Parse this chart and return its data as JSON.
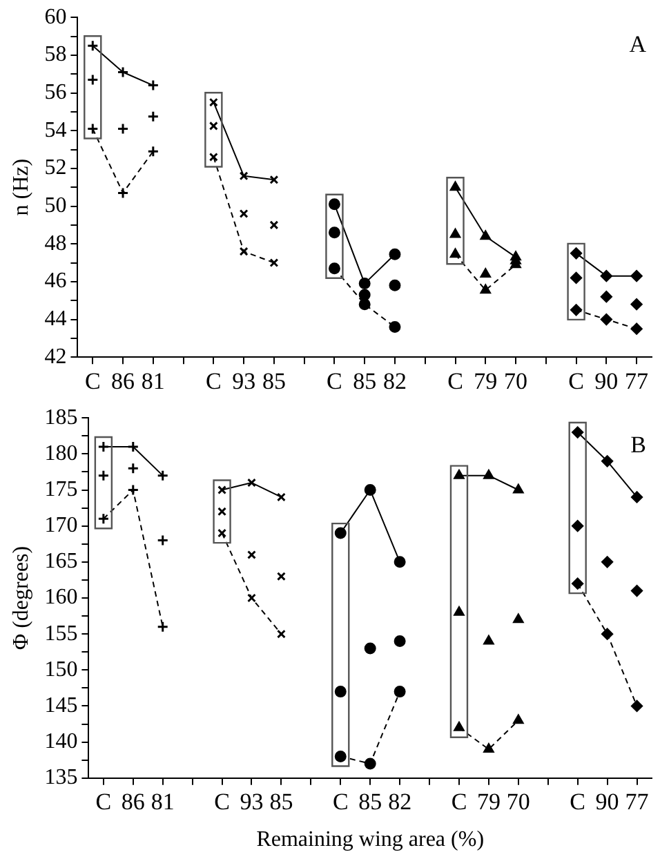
{
  "chart_data": [
    {
      "type": "line",
      "ylabel": "n (Hz)",
      "annotations": [
        "A"
      ],
      "grid": false,
      "legend": false,
      "categories": [
        "C",
        "86",
        "81",
        null,
        "C",
        "93",
        "85",
        null,
        "C",
        "85",
        "82",
        null,
        "C",
        "79",
        "70",
        null,
        "C",
        "90",
        "77"
      ],
      "ylim": [
        42,
        60
      ],
      "yticks": [
        42,
        {
          "value": 43,
          "label": null
        },
        44,
        {
          "value": 45,
          "label": null
        },
        46,
        {
          "value": 47,
          "label": null
        },
        48,
        {
          "value": 49,
          "label": null
        },
        50,
        {
          "value": 51,
          "label": null
        },
        52,
        {
          "value": 53,
          "label": null
        },
        54,
        {
          "value": 55,
          "label": null
        },
        56,
        {
          "value": 57,
          "label": null
        },
        58,
        {
          "value": 59,
          "label": null
        },
        60
      ],
      "series": [
        {
          "type": "line",
          "color": "#000000",
          "marker": "cross",
          "line_style": "solid",
          "values": [
            58.5,
            57.1,
            56.4,
            null,
            null,
            null,
            null,
            null,
            null,
            null,
            null,
            null,
            null,
            null,
            null,
            null,
            null,
            null,
            null
          ]
        },
        {
          "type": "scatter",
          "color": "#000000",
          "marker": "cross",
          "values": [
            56.7,
            54.1,
            54.75,
            null,
            null,
            null,
            null,
            null,
            null,
            null,
            null,
            null,
            null,
            null,
            null,
            null,
            null,
            null,
            null
          ]
        },
        {
          "type": "line",
          "color": "#000000",
          "marker": "cross",
          "line_style": "dashed",
          "values": [
            54.1,
            50.7,
            52.9,
            null,
            null,
            null,
            null,
            null,
            null,
            null,
            null,
            null,
            null,
            null,
            null,
            null,
            null,
            null,
            null
          ]
        },
        {
          "type": "line",
          "color": "#000000",
          "marker": "cross",
          "line_style": "solid",
          "values": [
            null,
            null,
            null,
            null,
            55.5,
            51.6,
            51.4,
            null,
            null,
            null,
            null,
            null,
            null,
            null,
            null,
            null,
            null,
            null,
            null
          ]
        },
        {
          "type": "scatter",
          "color": "#000000",
          "marker": "cross",
          "values": [
            null,
            null,
            null,
            null,
            54.25,
            49.6,
            49.0,
            null,
            null,
            null,
            null,
            null,
            null,
            null,
            null,
            null,
            null,
            null,
            null
          ]
        },
        {
          "type": "line",
          "color": "#000000",
          "marker": "cross",
          "line_style": "dashed",
          "values": [
            null,
            null,
            null,
            null,
            52.6,
            47.6,
            47.0,
            null,
            null,
            null,
            null,
            null,
            null,
            null,
            null,
            null,
            null,
            null,
            null
          ]
        },
        {
          "type": "line",
          "color": "#000000",
          "marker": "circle",
          "line_style": "solid",
          "values": [
            null,
            null,
            null,
            null,
            null,
            null,
            null,
            null,
            50.1,
            45.9,
            47.45,
            null,
            null,
            null,
            null,
            null,
            null,
            null,
            null
          ]
        },
        {
          "type": "scatter",
          "color": "#000000",
          "marker": "circle",
          "values": [
            null,
            null,
            null,
            null,
            null,
            null,
            null,
            null,
            48.6,
            45.3,
            45.8,
            null,
            null,
            null,
            null,
            null,
            null,
            null,
            null
          ]
        },
        {
          "type": "line",
          "color": "#000000",
          "marker": "circle",
          "line_style": "dashed",
          "values": [
            null,
            null,
            null,
            null,
            null,
            null,
            null,
            null,
            46.7,
            44.8,
            43.6,
            null,
            null,
            null,
            null,
            null,
            null,
            null,
            null
          ]
        },
        {
          "type": "line",
          "color": "#000000",
          "marker": "triangle",
          "line_style": "solid",
          "values": [
            null,
            null,
            null,
            null,
            null,
            null,
            null,
            null,
            null,
            null,
            null,
            null,
            51.0,
            48.4,
            47.3,
            null,
            null,
            null,
            null
          ]
        },
        {
          "type": "scatter",
          "color": "#000000",
          "marker": "triangle",
          "values": [
            null,
            null,
            null,
            null,
            null,
            null,
            null,
            null,
            null,
            null,
            null,
            null,
            48.5,
            46.4,
            47.1,
            null,
            null,
            null,
            null
          ]
        },
        {
          "type": "line",
          "color": "#000000",
          "marker": "triangle",
          "line_style": "dashed",
          "values": [
            null,
            null,
            null,
            null,
            null,
            null,
            null,
            null,
            null,
            null,
            null,
            null,
            47.45,
            45.55,
            46.9,
            null,
            null,
            null,
            null
          ]
        },
        {
          "type": "line",
          "color": "#000000",
          "marker": "diamond",
          "line_style": "solid",
          "values": [
            null,
            null,
            null,
            null,
            null,
            null,
            null,
            null,
            null,
            null,
            null,
            null,
            null,
            null,
            null,
            null,
            47.5,
            46.3,
            46.3
          ]
        },
        {
          "type": "scatter",
          "color": "#000000",
          "marker": "diamond",
          "values": [
            null,
            null,
            null,
            null,
            null,
            null,
            null,
            null,
            null,
            null,
            null,
            null,
            null,
            null,
            null,
            null,
            46.2,
            45.2,
            44.8
          ]
        },
        {
          "type": "line",
          "color": "#000000",
          "marker": "diamond",
          "line_style": "dashed",
          "values": [
            null,
            null,
            null,
            null,
            null,
            null,
            null,
            null,
            null,
            null,
            null,
            null,
            null,
            null,
            null,
            null,
            44.5,
            44.0,
            43.5
          ]
        }
      ]
    },
    {
      "type": "line",
      "ylabel": "Φ (degrees)",
      "xlabel": "Remaining wing area (%)",
      "annotations": [
        "B"
      ],
      "grid": false,
      "legend": false,
      "categories": [
        "C",
        "86",
        "81",
        null,
        "C",
        "93",
        "85",
        null,
        "C",
        "85",
        "82",
        null,
        "C",
        "79",
        "70",
        null,
        "C",
        "90",
        "77"
      ],
      "ylim": [
        135,
        185
      ],
      "yticks": [
        135,
        {
          "value": 137.5,
          "label": null
        },
        140,
        {
          "value": 142.5,
          "label": null
        },
        145,
        {
          "value": 147.5,
          "label": null
        },
        150,
        {
          "value": 152.5,
          "label": null
        },
        155,
        {
          "value": 157.5,
          "label": null
        },
        160,
        {
          "value": 162.5,
          "label": null
        },
        165,
        {
          "value": 167.5,
          "label": null
        },
        170,
        {
          "value": 172.5,
          "label": null
        },
        175,
        {
          "value": 177.5,
          "label": null
        },
        180,
        {
          "value": 182.5,
          "label": null
        },
        185
      ],
      "series": [
        {
          "type": "line",
          "color": "#000000",
          "marker": "cross",
          "line_style": "solid",
          "values": [
            181,
            181,
            177,
            null,
            null,
            null,
            null,
            null,
            null,
            null,
            null,
            null,
            null,
            null,
            null,
            null,
            null,
            null,
            null
          ]
        },
        {
          "type": "scatter",
          "color": "#000000",
          "marker": "cross",
          "values": [
            177,
            178,
            168,
            null,
            null,
            null,
            null,
            null,
            null,
            null,
            null,
            null,
            null,
            null,
            null,
            null,
            null,
            null,
            null
          ]
        },
        {
          "type": "line",
          "color": "#000000",
          "marker": "cross",
          "line_style": "dashed",
          "values": [
            171,
            175,
            156,
            null,
            null,
            null,
            null,
            null,
            null,
            null,
            null,
            null,
            null,
            null,
            null,
            null,
            null,
            null,
            null
          ]
        },
        {
          "type": "line",
          "color": "#000000",
          "marker": "cross",
          "line_style": "solid",
          "values": [
            null,
            null,
            null,
            null,
            175,
            176,
            174,
            null,
            null,
            null,
            null,
            null,
            null,
            null,
            null,
            null,
            null,
            null,
            null
          ]
        },
        {
          "type": "scatter",
          "color": "#000000",
          "marker": "cross",
          "values": [
            null,
            null,
            null,
            null,
            172,
            166,
            163,
            null,
            null,
            null,
            null,
            null,
            null,
            null,
            null,
            null,
            null,
            null,
            null
          ]
        },
        {
          "type": "line",
          "color": "#000000",
          "marker": "cross",
          "line_style": "dashed",
          "values": [
            null,
            null,
            null,
            null,
            169,
            160,
            155,
            null,
            null,
            null,
            null,
            null,
            null,
            null,
            null,
            null,
            null,
            null,
            null
          ]
        },
        {
          "type": "line",
          "color": "#000000",
          "marker": "circle",
          "line_style": "solid",
          "values": [
            null,
            null,
            null,
            null,
            null,
            null,
            null,
            null,
            169,
            175,
            165,
            null,
            null,
            null,
            null,
            null,
            null,
            null,
            null
          ]
        },
        {
          "type": "scatter",
          "color": "#000000",
          "marker": "circle",
          "values": [
            null,
            null,
            null,
            null,
            null,
            null,
            null,
            null,
            147,
            153,
            154,
            null,
            null,
            null,
            null,
            null,
            null,
            null,
            null
          ]
        },
        {
          "type": "line",
          "color": "#000000",
          "marker": "circle",
          "line_style": "dashed",
          "values": [
            null,
            null,
            null,
            null,
            null,
            null,
            null,
            null,
            138,
            137,
            147,
            null,
            null,
            null,
            null,
            null,
            null,
            null,
            null
          ]
        },
        {
          "type": "line",
          "color": "#000000",
          "marker": "triangle",
          "line_style": "solid",
          "values": [
            null,
            null,
            null,
            null,
            null,
            null,
            null,
            null,
            null,
            null,
            null,
            null,
            177,
            177,
            175,
            null,
            null,
            null,
            null
          ]
        },
        {
          "type": "scatter",
          "color": "#000000",
          "marker": "triangle",
          "values": [
            null,
            null,
            null,
            null,
            null,
            null,
            null,
            null,
            null,
            null,
            null,
            null,
            158,
            154,
            157,
            null,
            null,
            null,
            null
          ]
        },
        {
          "type": "line",
          "color": "#000000",
          "marker": "triangle",
          "line_style": "dashed",
          "values": [
            null,
            null,
            null,
            null,
            null,
            null,
            null,
            null,
            null,
            null,
            null,
            null,
            142,
            139,
            143,
            null,
            null,
            null,
            null
          ]
        },
        {
          "type": "line",
          "color": "#000000",
          "marker": "diamond",
          "line_style": "solid",
          "values": [
            null,
            null,
            null,
            null,
            null,
            null,
            null,
            null,
            null,
            null,
            null,
            null,
            null,
            null,
            null,
            null,
            183,
            179,
            174
          ]
        },
        {
          "type": "scatter",
          "color": "#000000",
          "marker": "diamond",
          "values": [
            null,
            null,
            null,
            null,
            null,
            null,
            null,
            null,
            null,
            null,
            null,
            null,
            null,
            null,
            null,
            null,
            170,
            165,
            161
          ]
        },
        {
          "type": "line",
          "color": "#000000",
          "marker": "diamond",
          "line_style": "dashed",
          "values": [
            null,
            null,
            null,
            null,
            null,
            null,
            null,
            null,
            null,
            null,
            null,
            null,
            null,
            null,
            null,
            null,
            162,
            155,
            145
          ]
        }
      ]
    }
  ]
}
